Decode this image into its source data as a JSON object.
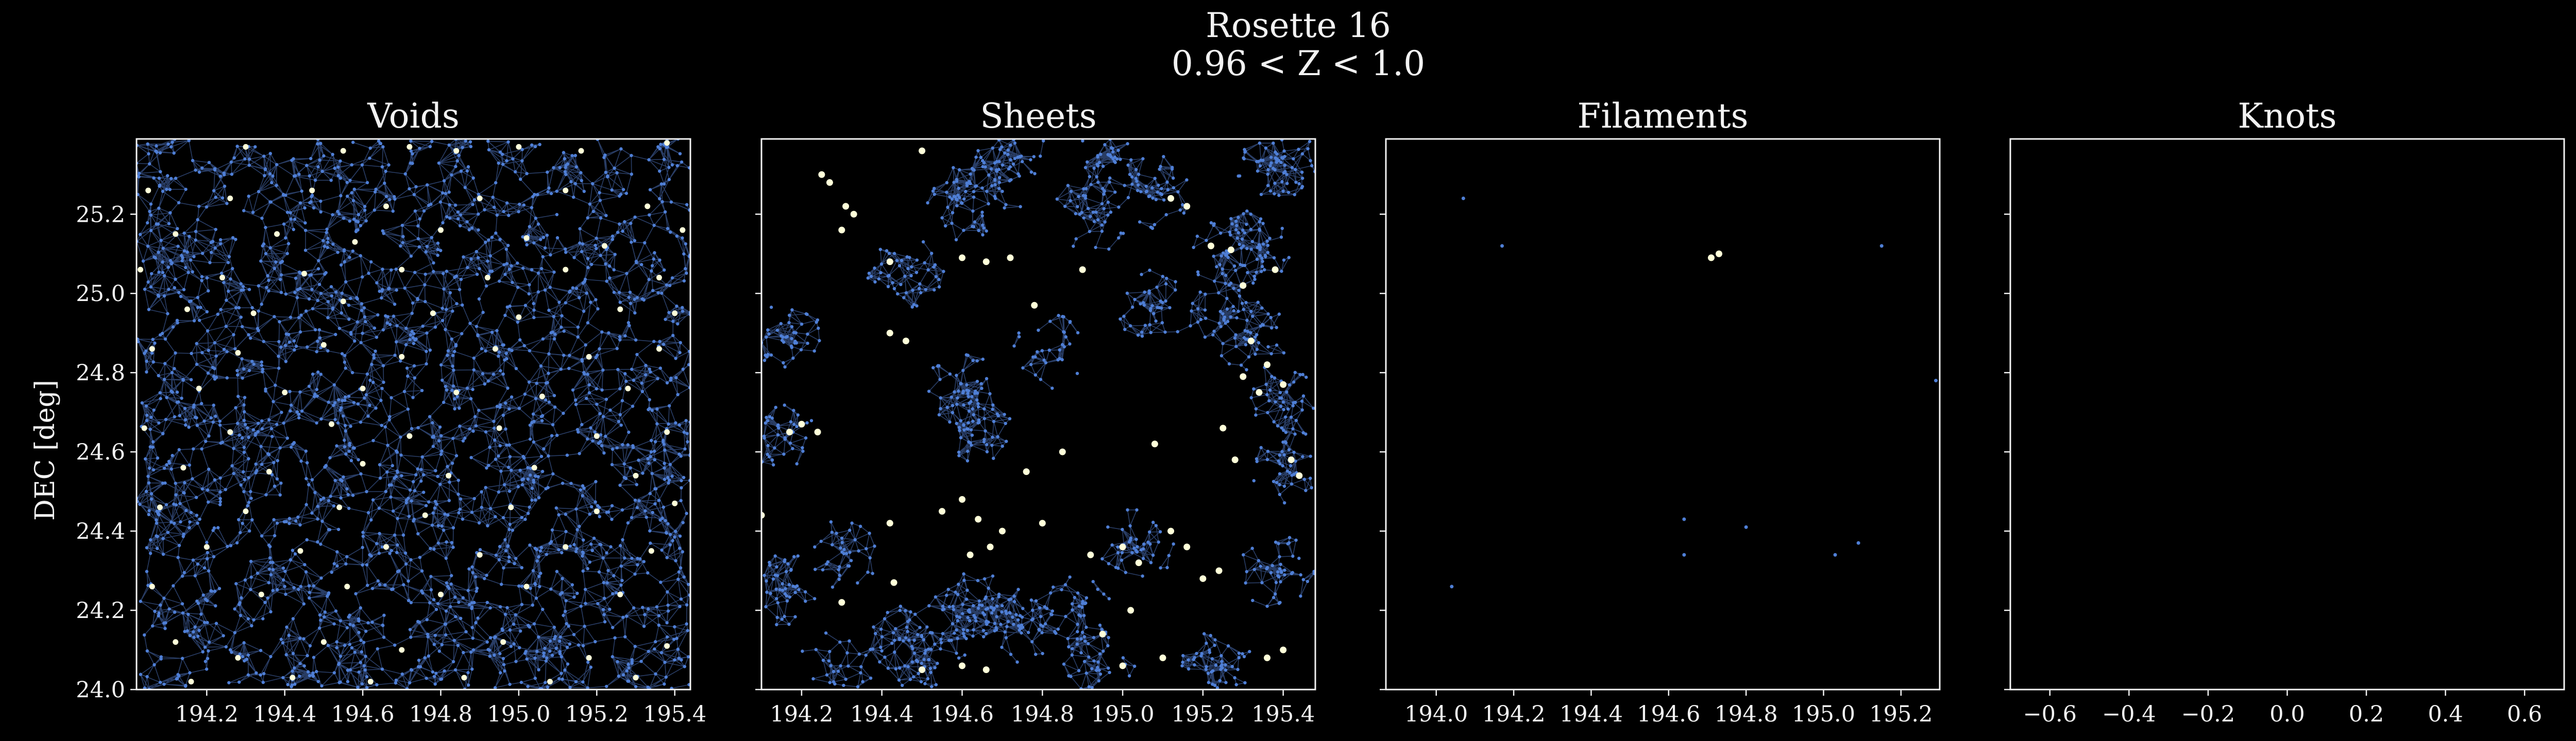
{
  "figure": {
    "title_line1": "Rosette 16",
    "title_line2": "0.96 < Z < 1.0",
    "ylabel": "DEC [deg]"
  },
  "colors": {
    "background": "#000000",
    "frame": "#f2f2f2",
    "galaxy": "#4f7fd6",
    "edge": "#4a70b8",
    "highlight": "#ffffd9"
  },
  "chart_data": [
    {
      "type": "scatter",
      "title": "Voids",
      "xlim": [
        194.02,
        195.44
      ],
      "ylim": [
        24.0,
        25.39
      ],
      "xticks": [
        194.2,
        194.4,
        194.6,
        194.8,
        195.0,
        195.2,
        195.4
      ],
      "xticklabels": [
        "194.2",
        "194.4",
        "194.6",
        "194.8",
        "195.0",
        "195.2",
        "195.4"
      ],
      "yticks": [
        24.0,
        24.2,
        24.4,
        24.6,
        24.8,
        25.0,
        25.2
      ],
      "yticklabels": [
        "24.0",
        "24.2",
        "24.4",
        "24.6",
        "24.8",
        "25.0",
        "25.2"
      ],
      "background_density": "high",
      "highlight_points": [
        [
          194.3,
          25.37
        ],
        [
          194.55,
          25.36
        ],
        [
          194.72,
          25.37
        ],
        [
          194.84,
          25.36
        ],
        [
          195.0,
          25.37
        ],
        [
          195.16,
          25.36
        ],
        [
          195.38,
          25.38
        ],
        [
          194.05,
          25.26
        ],
        [
          194.26,
          25.24
        ],
        [
          194.47,
          25.26
        ],
        [
          194.66,
          25.22
        ],
        [
          194.9,
          25.24
        ],
        [
          195.12,
          25.26
        ],
        [
          195.33,
          25.22
        ],
        [
          194.12,
          25.15
        ],
        [
          194.38,
          25.15
        ],
        [
          194.58,
          25.13
        ],
        [
          194.8,
          25.16
        ],
        [
          195.02,
          25.14
        ],
        [
          195.22,
          25.12
        ],
        [
          195.42,
          25.16
        ],
        [
          194.03,
          25.06
        ],
        [
          194.24,
          25.04
        ],
        [
          194.45,
          25.05
        ],
        [
          194.7,
          25.06
        ],
        [
          194.92,
          25.04
        ],
        [
          195.12,
          25.06
        ],
        [
          195.36,
          25.04
        ],
        [
          194.15,
          24.96
        ],
        [
          194.32,
          24.95
        ],
        [
          194.55,
          24.98
        ],
        [
          194.78,
          24.95
        ],
        [
          195.0,
          24.94
        ],
        [
          195.26,
          24.96
        ],
        [
          195.4,
          24.95
        ],
        [
          194.06,
          24.86
        ],
        [
          194.28,
          24.85
        ],
        [
          194.5,
          24.87
        ],
        [
          194.7,
          24.84
        ],
        [
          194.94,
          24.86
        ],
        [
          195.18,
          24.84
        ],
        [
          195.36,
          24.86
        ],
        [
          194.18,
          24.76
        ],
        [
          194.4,
          24.75
        ],
        [
          194.6,
          24.76
        ],
        [
          194.84,
          24.75
        ],
        [
          195.06,
          24.74
        ],
        [
          195.28,
          24.76
        ],
        [
          194.04,
          24.66
        ],
        [
          194.26,
          24.65
        ],
        [
          194.52,
          24.67
        ],
        [
          194.72,
          24.64
        ],
        [
          194.95,
          24.66
        ],
        [
          195.2,
          24.64
        ],
        [
          195.38,
          24.65
        ],
        [
          194.14,
          24.56
        ],
        [
          194.36,
          24.55
        ],
        [
          194.6,
          24.57
        ],
        [
          194.82,
          24.54
        ],
        [
          195.04,
          24.56
        ],
        [
          195.3,
          24.54
        ],
        [
          194.08,
          24.46
        ],
        [
          194.3,
          24.45
        ],
        [
          194.54,
          24.46
        ],
        [
          194.76,
          24.44
        ],
        [
          194.98,
          24.46
        ],
        [
          195.2,
          24.45
        ],
        [
          195.4,
          24.47
        ],
        [
          194.2,
          24.36
        ],
        [
          194.44,
          24.35
        ],
        [
          194.66,
          24.36
        ],
        [
          194.9,
          24.34
        ],
        [
          195.12,
          24.36
        ],
        [
          195.34,
          24.35
        ],
        [
          194.06,
          24.26
        ],
        [
          194.34,
          24.24
        ],
        [
          194.56,
          24.26
        ],
        [
          194.8,
          24.24
        ],
        [
          195.02,
          24.26
        ],
        [
          195.26,
          24.24
        ],
        [
          194.12,
          24.12
        ],
        [
          194.28,
          24.08
        ],
        [
          194.5,
          24.12
        ],
        [
          194.7,
          24.1
        ],
        [
          194.96,
          24.12
        ],
        [
          195.18,
          24.08
        ],
        [
          195.38,
          24.11
        ],
        [
          194.16,
          24.02
        ],
        [
          194.42,
          24.03
        ],
        [
          194.62,
          24.02
        ],
        [
          194.86,
          24.03
        ],
        [
          195.08,
          24.02
        ],
        [
          195.3,
          24.03
        ]
      ]
    },
    {
      "type": "scatter",
      "title": "Sheets",
      "xlim": [
        194.1,
        195.48
      ],
      "ylim": [
        24.0,
        25.39
      ],
      "xticks": [
        194.2,
        194.4,
        194.6,
        194.8,
        195.0,
        195.2,
        195.4
      ],
      "xticklabels": [
        "194.2",
        "194.4",
        "194.6",
        "194.8",
        "195.0",
        "195.2",
        "195.4"
      ],
      "yticks": [
        24.0,
        24.2,
        24.4,
        24.6,
        24.8,
        25.0,
        25.2
      ],
      "yticklabels": [],
      "background_density": "medium",
      "highlight_points": [
        [
          194.25,
          25.3
        ],
        [
          194.27,
          25.28
        ],
        [
          194.31,
          25.22
        ],
        [
          194.33,
          25.2
        ],
        [
          194.3,
          25.16
        ],
        [
          194.42,
          25.08
        ],
        [
          194.5,
          25.36
        ],
        [
          194.6,
          25.09
        ],
        [
          194.66,
          25.08
        ],
        [
          194.72,
          25.09
        ],
        [
          194.78,
          24.97
        ],
        [
          194.9,
          25.06
        ],
        [
          195.12,
          25.24
        ],
        [
          195.16,
          25.22
        ],
        [
          195.22,
          25.12
        ],
        [
          195.27,
          25.11
        ],
        [
          195.3,
          25.02
        ],
        [
          195.38,
          25.06
        ],
        [
          195.32,
          24.88
        ],
        [
          195.36,
          24.82
        ],
        [
          195.4,
          24.77
        ],
        [
          195.34,
          24.75
        ],
        [
          195.3,
          24.79
        ],
        [
          194.42,
          24.9
        ],
        [
          194.46,
          24.88
        ],
        [
          194.17,
          24.65
        ],
        [
          194.2,
          24.67
        ],
        [
          194.24,
          24.65
        ],
        [
          194.85,
          24.6
        ],
        [
          194.76,
          24.55
        ],
        [
          195.08,
          24.62
        ],
        [
          195.25,
          24.66
        ],
        [
          195.28,
          24.58
        ],
        [
          195.42,
          24.58
        ],
        [
          195.44,
          24.54
        ],
        [
          194.1,
          24.44
        ],
        [
          194.55,
          24.45
        ],
        [
          194.6,
          24.48
        ],
        [
          194.64,
          24.43
        ],
        [
          194.7,
          24.4
        ],
        [
          194.8,
          24.42
        ],
        [
          194.42,
          24.42
        ],
        [
          194.92,
          24.34
        ],
        [
          195.0,
          24.36
        ],
        [
          195.04,
          24.32
        ],
        [
          195.12,
          24.4
        ],
        [
          195.16,
          24.36
        ],
        [
          195.2,
          24.28
        ],
        [
          195.24,
          24.3
        ],
        [
          194.62,
          24.34
        ],
        [
          194.67,
          24.36
        ],
        [
          194.3,
          24.22
        ],
        [
          194.43,
          24.27
        ],
        [
          194.6,
          24.06
        ],
        [
          194.66,
          24.05
        ],
        [
          194.5,
          24.05
        ],
        [
          194.95,
          24.14
        ],
        [
          195.02,
          24.2
        ],
        [
          195.0,
          24.06
        ],
        [
          195.1,
          24.08
        ],
        [
          195.36,
          24.08
        ],
        [
          195.4,
          24.1
        ]
      ]
    },
    {
      "type": "scatter",
      "title": "Filaments",
      "xlim": [
        193.87,
        195.3
      ],
      "ylim": [
        24.0,
        25.39
      ],
      "xticks": [
        194.0,
        194.2,
        194.4,
        194.6,
        194.8,
        195.0,
        195.2
      ],
      "xticklabels": [
        "194.0",
        "194.2",
        "194.4",
        "194.6",
        "194.8",
        "195.0",
        "195.2"
      ],
      "yticks": [
        24.0,
        24.2,
        24.4,
        24.6,
        24.8,
        25.0,
        25.2
      ],
      "yticklabels": [],
      "background_points": [
        [
          194.07,
          25.24
        ],
        [
          194.17,
          25.12
        ],
        [
          194.04,
          24.26
        ],
        [
          194.64,
          24.43
        ],
        [
          194.64,
          24.34
        ],
        [
          194.8,
          24.41
        ],
        [
          195.03,
          24.34
        ],
        [
          195.09,
          24.37
        ],
        [
          195.15,
          25.12
        ],
        [
          195.29,
          24.78
        ]
      ],
      "highlight_points": [
        [
          194.71,
          25.09
        ],
        [
          194.73,
          25.1
        ]
      ]
    },
    {
      "type": "scatter",
      "title": "Knots",
      "xlim": [
        -0.7,
        0.7
      ],
      "ylim": [
        24.0,
        25.39
      ],
      "xticks": [
        -0.6,
        -0.4,
        -0.2,
        0.0,
        0.2,
        0.4,
        0.6
      ],
      "xticklabels": [
        "−0.6",
        "−0.4",
        "−0.2",
        "0.0",
        "0.2",
        "0.4",
        "0.6"
      ],
      "yticks": [
        24.0,
        24.2,
        24.4,
        24.6,
        24.8,
        25.0,
        25.2
      ],
      "yticklabels": [],
      "highlight_points": []
    }
  ]
}
